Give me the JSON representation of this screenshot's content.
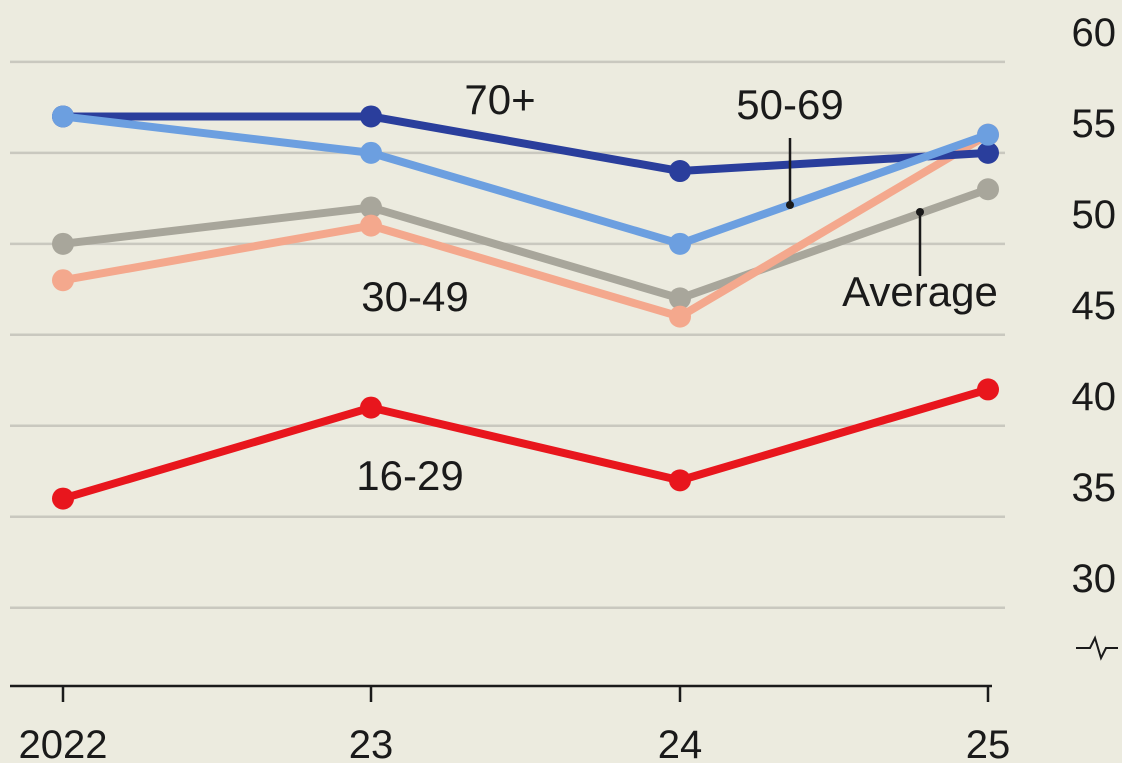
{
  "chart_data": {
    "type": "line",
    "categories": [
      "2022",
      "23",
      "24",
      "25"
    ],
    "series": [
      {
        "name": "Average",
        "color": "#a8a69b",
        "values": [
          50,
          52,
          47,
          53
        ]
      },
      {
        "name": "30-49",
        "color": "#f4a88d",
        "values": [
          48,
          51,
          46,
          56
        ]
      },
      {
        "name": "70+",
        "color": "#2a3e9c",
        "values": [
          57,
          57,
          54,
          55
        ]
      },
      {
        "name": "50-69",
        "color": "#6c9fe0",
        "values": [
          57,
          55,
          50,
          56
        ]
      },
      {
        "name": "16-29",
        "color": "#e8161d",
        "values": [
          36,
          41,
          37,
          42
        ]
      }
    ],
    "ylim": [
      25.7,
      63.4
    ],
    "yticks": [
      30,
      35,
      40,
      45,
      50,
      55,
      60
    ],
    "grid": true
  }
}
